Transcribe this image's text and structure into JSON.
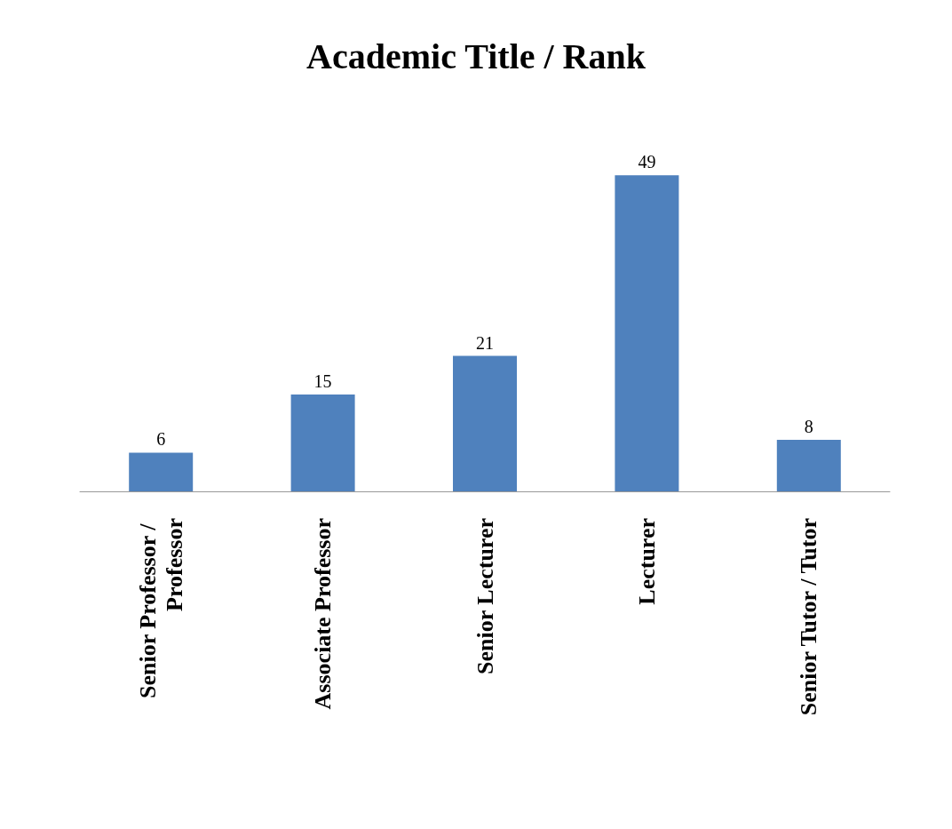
{
  "chart_data": {
    "type": "bar",
    "title": "Academic Title / Rank",
    "categories": [
      "Senior Professor / Professor",
      "Associate Professor",
      "Senior Lecturer",
      "Lecturer",
      "Senior Tutor / Tutor"
    ],
    "values": [
      6,
      15,
      21,
      49,
      8
    ],
    "color": "#4f81bd",
    "data_labels": true
  }
}
